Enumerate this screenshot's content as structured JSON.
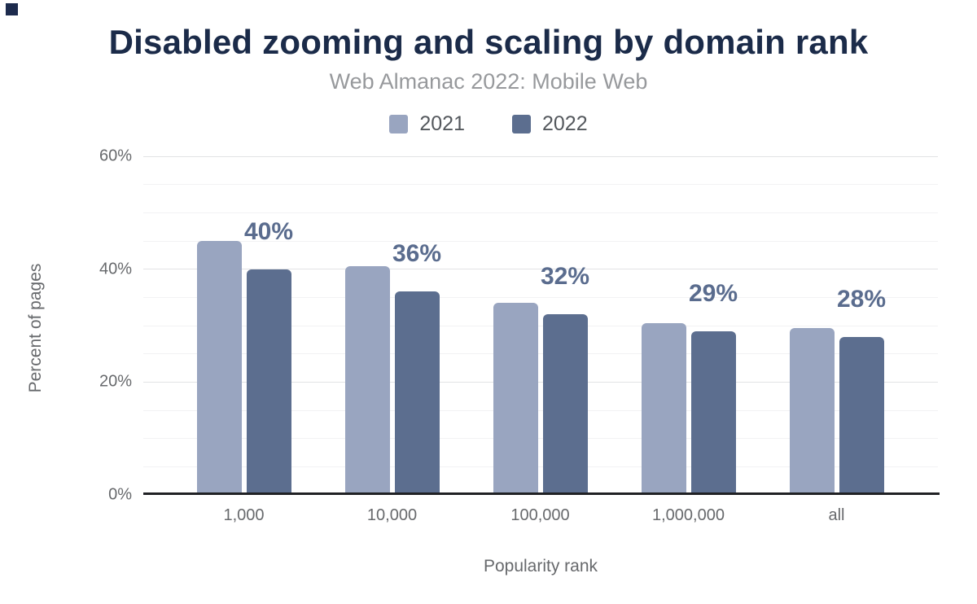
{
  "chart_data": {
    "type": "bar",
    "title": "Disabled zooming and scaling by domain rank",
    "subtitle": "Web Almanac 2022: Mobile Web",
    "categories": [
      "1,000",
      "10,000",
      "100,000",
      "1,000,000",
      "all"
    ],
    "series": [
      {
        "name": "2021",
        "color": "#99A5C0",
        "values": [
          45,
          40.5,
          34,
          30.5,
          29.5
        ]
      },
      {
        "name": "2022",
        "color": "#5C6E8F",
        "values": [
          40,
          36,
          32,
          29,
          28
        ],
        "data_labels": [
          "40%",
          "36%",
          "32%",
          "29%",
          "28%"
        ]
      }
    ],
    "xlabel": "Popularity rank",
    "ylabel": "Percent of pages",
    "ylim": [
      0,
      60
    ],
    "yticks": [
      0,
      20,
      40,
      60
    ],
    "ytick_labels": [
      "0%",
      "20%",
      "40%",
      "60%"
    ],
    "minor_grid_step": 5,
    "grid": true,
    "legend_position": "top"
  },
  "colors": {
    "title": "#1B2B49",
    "subtitle": "#97999C",
    "axis_text": "#67696C",
    "legend_text": "#54585D",
    "axis_line": "#202124",
    "grid_major": "#E2E3E5",
    "grid_minor": "#F2F2F4",
    "data_label": "#5A6C8E",
    "corner_mark": "#1D2B4D",
    "background": "#FFFFFF"
  }
}
